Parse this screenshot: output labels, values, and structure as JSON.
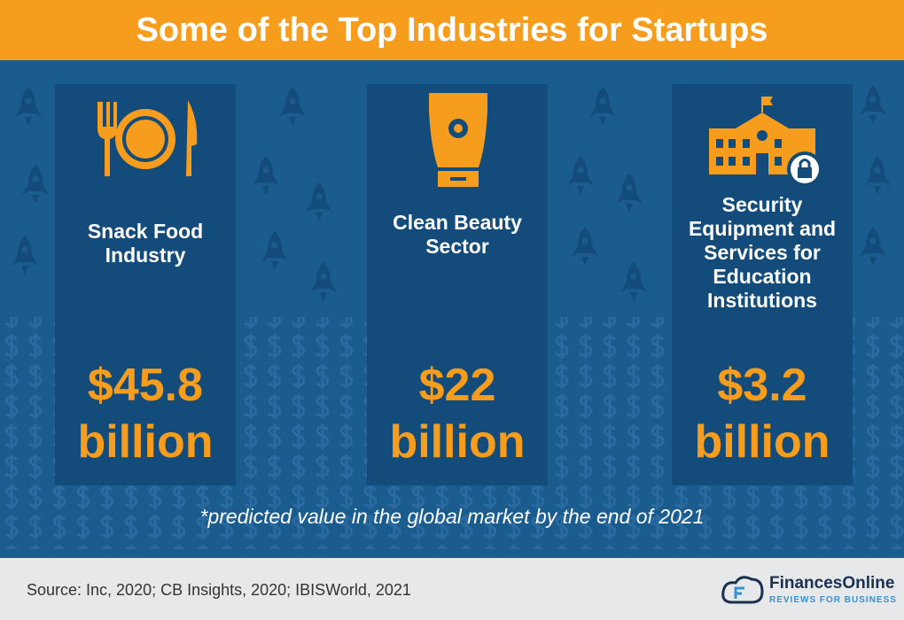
{
  "header": {
    "title": "Some of the Top Industries for Startups"
  },
  "cards": [
    {
      "label": "Snack Food Industry",
      "value": "$45.8",
      "unit": "billion"
    },
    {
      "label": "Clean Beauty Sector",
      "value": "$22",
      "unit": "billion"
    },
    {
      "label": "Security Equipment and Services for Education Institutions",
      "value": "$3.2",
      "unit": "billion"
    }
  ],
  "footnote": "*predicted value in the global market by the end of 2021",
  "footer": {
    "source": "Source: Inc, 2020; CB Insights, 2020; IBISWorld, 2021",
    "logo_name": "FinancesOnline",
    "logo_tagline": "REVIEWS FOR BUSINESS"
  }
}
